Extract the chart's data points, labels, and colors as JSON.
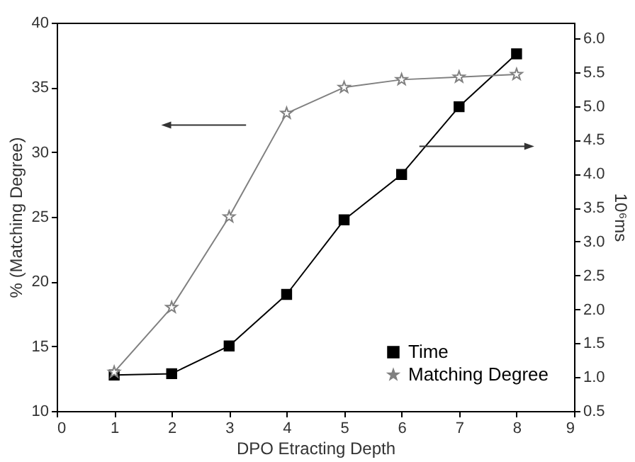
{
  "chart_data": {
    "type": "line",
    "xlabel": "DPO Etracting Depth",
    "ylabel": "% (Matching Degree)",
    "y2label": "10⁶ms",
    "x": [
      1,
      2,
      3,
      4,
      5,
      6,
      7,
      8
    ],
    "series": [
      {
        "name": "Time",
        "color": "#000000",
        "marker": "square",
        "axis": "y2",
        "values": [
          1.03,
          1.05,
          1.46,
          2.22,
          3.32,
          3.99,
          4.99,
          5.77
        ]
      },
      {
        "name": "Matching Degree",
        "color": "#808080",
        "marker": "star",
        "values": [
          13,
          18,
          25,
          33,
          35,
          35.6,
          35.8,
          36
        ]
      }
    ],
    "xlim": [
      0,
      9
    ],
    "xticks": [
      0,
      1,
      2,
      3,
      4,
      5,
      6,
      7,
      8,
      9
    ],
    "ylim": [
      10,
      40
    ],
    "yticks": [
      10,
      15,
      20,
      25,
      30,
      35,
      40
    ],
    "y2lim": [
      0.5,
      6.23
    ],
    "y2ticks": [
      {
        "value": 0.5,
        "label": "0.5"
      },
      {
        "value": 1,
        "label": "1.0"
      },
      {
        "value": 1.5,
        "label": "1.5"
      },
      {
        "value": 2,
        "label": "2.0"
      },
      {
        "value": 2.5,
        "label": "2.5"
      },
      {
        "value": 3,
        "label": "3.0"
      },
      {
        "value": 3.5,
        "label": "3.5"
      },
      {
        "value": 4,
        "label": "4.0"
      },
      {
        "value": 4.5,
        "label": "4.5"
      },
      {
        "value": 5,
        "label": "5.0"
      },
      {
        "value": 5.5,
        "label": "5.5"
      },
      {
        "value": 6,
        "label": "6.0"
      }
    ],
    "grid": false,
    "legend": "bottom right",
    "line_style": "solid"
  }
}
